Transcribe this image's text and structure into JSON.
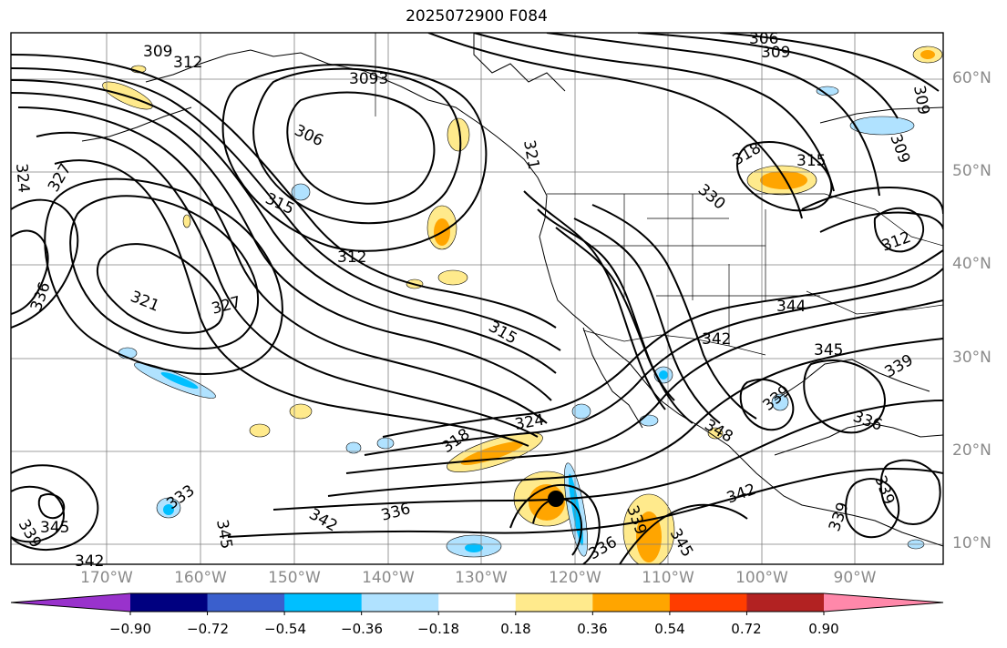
{
  "title": "2025072900 F084",
  "longitude_labels": [
    "170°W",
    "160°W",
    "150°W",
    "140°W",
    "130°W",
    "120°W",
    "110°W",
    "100°W",
    "90°W"
  ],
  "latitude_labels": [
    "60°N",
    "50°N",
    "40°N",
    "30°N",
    "20°N",
    "10°N"
  ],
  "contour_labels": [
    "309",
    "312",
    "3093",
    "306",
    "315",
    "312",
    "321",
    "327",
    "336",
    "324",
    "327",
    "321",
    "306",
    "309",
    "318",
    "315",
    "330",
    "309",
    "309",
    "312",
    "344",
    "342",
    "345",
    "339",
    "336",
    "339",
    "318",
    "324",
    "336",
    "342",
    "333",
    "345",
    "345",
    "339",
    "342",
    "336",
    "339",
    "345",
    "342",
    "339",
    "348",
    "339",
    "315"
  ],
  "colorbar": {
    "ticks": [
      "−0.90",
      "−0.72",
      "−0.54",
      "−0.36",
      "−0.18",
      "0.18",
      "0.36",
      "0.54",
      "0.72",
      "0.90"
    ],
    "colors": [
      "#9932cc",
      "#000080",
      "#3a5fcd",
      "#00bfff",
      "#b0e2ff",
      "#ffffff",
      "#ffea8c",
      "#ffa500",
      "#ff3d00",
      "#b22222",
      "#ff88aa"
    ]
  },
  "colors": {
    "contour": "#000000",
    "coast": "#000000",
    "grid": "#7f7f7f",
    "neg_light": "#b0e2ff",
    "neg_mid": "#00bfff",
    "pos_light": "#ffea8c",
    "pos_mid": "#ffa500"
  },
  "storm_marker": "tropical-cyclone-dot-icon"
}
